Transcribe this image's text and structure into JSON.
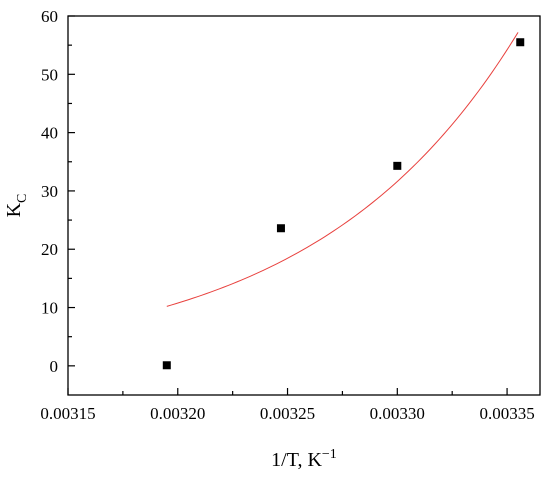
{
  "chart_data": {
    "type": "scatter",
    "xlabel": "1/T, K",
    "xlabel_sup": "−1",
    "ylabel": "K",
    "ylabel_sub": "C",
    "xlim": [
      0.00315,
      0.003365
    ],
    "ylim": [
      -5,
      60
    ],
    "x_ticks": [
      "0.00315",
      "0.00320",
      "0.00325",
      "0.00330",
      "0.00335"
    ],
    "y_ticks": [
      "0",
      "10",
      "20",
      "30",
      "40",
      "50",
      "60"
    ],
    "grid": false,
    "legend": "none",
    "series": [
      {
        "kind": "points",
        "marker": "square",
        "color": "#000000",
        "x": [
          0.003195,
          0.003247,
          0.0033,
          0.003356
        ],
        "y": [
          0.1,
          23.6,
          34.3,
          55.5
        ]
      },
      {
        "kind": "fit",
        "color": "#e8413e",
        "x_range": [
          0.003195,
          0.003355
        ],
        "y_at_start": 10.2,
        "y_at_end": 57.2
      }
    ]
  }
}
